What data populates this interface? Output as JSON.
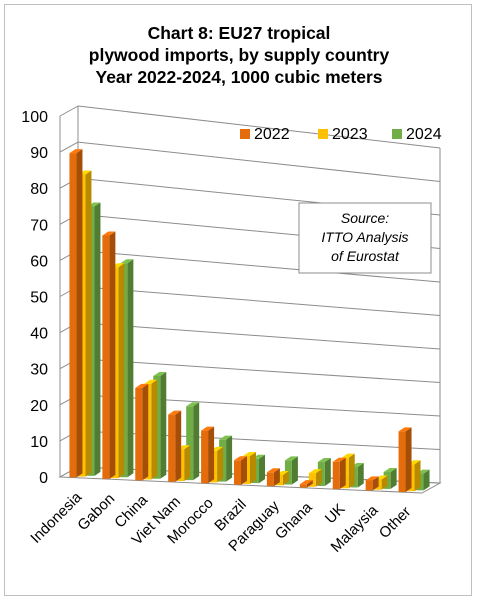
{
  "chart_data": {
    "type": "bar",
    "title_lines": [
      "Chart 8: EU27 tropical",
      "plywood imports, by supply country",
      "Year 2022-2024, 1000 cubic meters"
    ],
    "categories": [
      "Indonesia",
      "Gabon",
      "China",
      "Viet Nam",
      "Morocco",
      "Brazil",
      "Paraguay",
      "Ghana",
      "UK",
      "Malaysia",
      "Other"
    ],
    "series": [
      {
        "name": "2022",
        "color": "#E46C0A",
        "values": [
          90,
          68,
          26,
          19,
          15,
          7,
          4,
          1,
          8,
          3,
          18
        ]
      },
      {
        "name": "2023",
        "color": "#FFC000",
        "values": [
          84,
          59,
          27,
          9,
          9,
          8,
          3,
          4,
          9,
          3,
          8
        ]
      },
      {
        "name": "2024",
        "color": "#70AD47",
        "values": [
          75,
          60,
          29,
          21,
          12,
          7,
          7,
          7,
          6,
          5,
          5
        ]
      }
    ],
    "ylim": [
      0,
      100
    ],
    "yticks": [
      "0",
      "10",
      "20",
      "30",
      "40",
      "50",
      "60",
      "70",
      "80",
      "90",
      "100"
    ],
    "grid": true,
    "legend_position": "top-right",
    "annotation_lines": [
      "Source:",
      "ITTO Analysis",
      "of Eurostat"
    ]
  }
}
